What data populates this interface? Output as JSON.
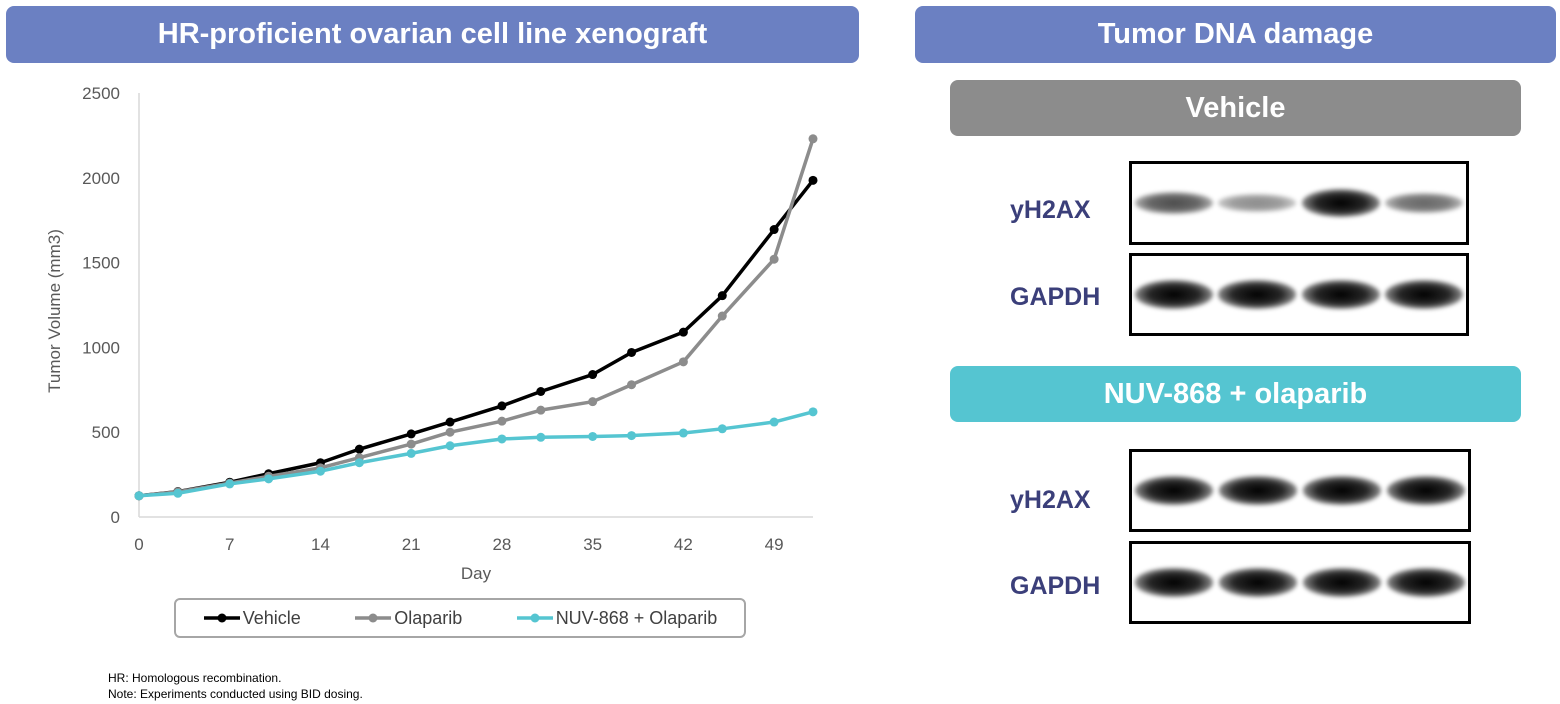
{
  "left_panel": {
    "title": "HR-proficient ovarian cell line xenograft"
  },
  "right_panel": {
    "title": "Tumor DNA damage",
    "groups": [
      {
        "label": "Vehicle",
        "rows": [
          {
            "label": "yH2AX",
            "band_intensity": [
              0.55,
              0.3,
              0.9,
              0.45
            ]
          },
          {
            "label": "GAPDH",
            "band_intensity": [
              0.95,
              0.9,
              0.95,
              0.95
            ]
          }
        ]
      },
      {
        "label": "NUV-868 + olaparib",
        "rows": [
          {
            "label": "yH2AX",
            "band_intensity": [
              0.95,
              0.9,
              0.92,
              0.95
            ]
          },
          {
            "label": "GAPDH",
            "band_intensity": [
              0.9,
              0.92,
              0.95,
              0.95
            ]
          }
        ]
      }
    ]
  },
  "colors": {
    "banner_blue": "#6b80c2",
    "vehicle_grey": "#8c8c8c",
    "combo_cyan": "#55c5d1",
    "vehicle_line": "#000000",
    "olaparib_line": "#8c8c8c",
    "combo_line": "#55c5d1"
  },
  "chart_data": {
    "type": "line",
    "title": "",
    "xlabel": "Day",
    "ylabel": "Tumor Volume (mm3)",
    "xlim": [
      0,
      52
    ],
    "ylim": [
      0,
      2500
    ],
    "xticks": [
      0,
      7,
      14,
      21,
      28,
      35,
      42,
      49
    ],
    "yticks": [
      0,
      500,
      1000,
      1500,
      2000,
      2500
    ],
    "x": [
      0,
      3,
      7,
      10,
      14,
      17,
      21,
      24,
      28,
      31,
      35,
      38,
      42,
      45,
      49,
      52
    ],
    "series": [
      {
        "name": "Vehicle",
        "color": "#000000",
        "values": [
          125,
          150,
          205,
          255,
          320,
          400,
          490,
          560,
          655,
          740,
          840,
          970,
          1090,
          1305,
          1695,
          1985
        ]
      },
      {
        "name": "Olaparib",
        "color": "#8c8c8c",
        "values": [
          125,
          148,
          200,
          240,
          290,
          350,
          430,
          500,
          565,
          630,
          680,
          780,
          915,
          1185,
          1520,
          2230
        ]
      },
      {
        "name": "NUV-868 + Olaparib",
        "color": "#55c5d1",
        "values": [
          125,
          140,
          195,
          225,
          270,
          320,
          375,
          420,
          460,
          470,
          475,
          480,
          495,
          520,
          560,
          620
        ]
      }
    ],
    "legend_position": "bottom"
  },
  "footnotes": [
    "HR: Homologous recombination.",
    "Note: Experiments conducted using BID dosing."
  ]
}
